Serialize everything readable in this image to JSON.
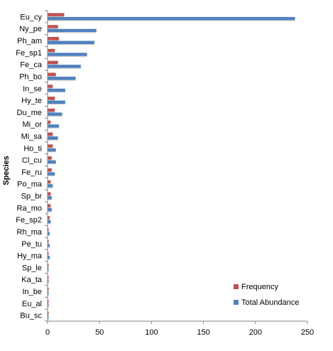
{
  "chart_data": {
    "type": "bar",
    "orientation": "horizontal",
    "categories": [
      "Eu_cy",
      "Ny_pe",
      "Ph_am",
      "Fe_sp1",
      "Fe_ca",
      "Ph_bo",
      "In_se",
      "Hy_te",
      "Du_me",
      "Mi_or",
      "Mi_sa",
      "Ho_ti",
      "Cl_cu",
      "Fe_ru",
      "Po_ma",
      "Sp_br",
      "Ra_mo",
      "Fe_sp2",
      "Rh_ma",
      "Pe_tu",
      "Hy_ma",
      "Sp_le",
      "Ka_ta",
      "In_be",
      "Eu_al",
      "Bu_sc"
    ],
    "series": [
      {
        "name": "Frequency",
        "color": "#c0504d",
        "values": [
          16,
          10,
          11,
          7,
          10,
          8,
          5,
          7,
          7,
          3,
          5,
          5,
          4,
          4,
          3,
          3,
          3,
          2,
          1,
          1,
          1,
          1,
          1,
          1,
          1,
          1
        ]
      },
      {
        "name": "Total Abundance",
        "color": "#4f81bd",
        "values": [
          238,
          47,
          45,
          38,
          32,
          27,
          17,
          17,
          14,
          11,
          10,
          8,
          8,
          7,
          5,
          4,
          4,
          3,
          2,
          2,
          2,
          1,
          1,
          1,
          1,
          1
        ]
      }
    ],
    "xlim": [
      0,
      250
    ],
    "xticks": [
      0,
      50,
      100,
      150,
      200,
      250
    ],
    "ylabel": "Species",
    "xlabel": "",
    "title": "",
    "legend_position": "bottom-right",
    "grid": false
  }
}
